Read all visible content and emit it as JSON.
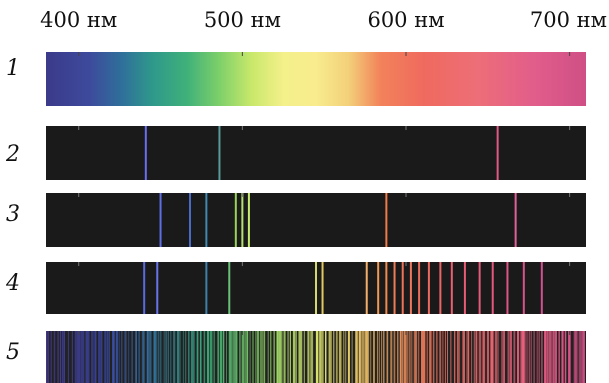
{
  "axis": {
    "ticks": [
      {
        "label": "400 нм",
        "nm": 400
      },
      {
        "label": "500 нм",
        "nm": 500
      },
      {
        "label": "600 нм",
        "nm": 600
      },
      {
        "label": "700 нм",
        "nm": 700
      }
    ],
    "range_nm": [
      380,
      710
    ]
  },
  "spectra": [
    {
      "number": "1",
      "kind": "continuous",
      "lines": []
    },
    {
      "number": "2",
      "kind": "emission",
      "lines": [
        {
          "nm": 441,
          "color": "#6a6ef0"
        },
        {
          "nm": 486,
          "color": "#5a9a9a"
        },
        {
          "nm": 656,
          "color": "#e05a86"
        }
      ]
    },
    {
      "number": "3",
      "kind": "emission",
      "lines": [
        {
          "nm": 450,
          "color": "#5e6ee6"
        },
        {
          "nm": 468,
          "color": "#4a6ac8"
        },
        {
          "nm": 478,
          "color": "#3f8ab0"
        },
        {
          "nm": 496,
          "color": "#9ad25a"
        },
        {
          "nm": 500,
          "color": "#b6e070"
        },
        {
          "nm": 504,
          "color": "#c8ec70"
        },
        {
          "nm": 588,
          "color": "#f07a4a"
        },
        {
          "nm": 667,
          "color": "#e0609a"
        }
      ]
    },
    {
      "number": "4",
      "kind": "emission",
      "lines": [
        {
          "nm": 440,
          "color": "#5a6ae0"
        },
        {
          "nm": 448,
          "color": "#6a74ea"
        },
        {
          "nm": 478,
          "color": "#3f80aa"
        },
        {
          "nm": 492,
          "color": "#6ac07a"
        },
        {
          "nm": 545,
          "color": "#d6d86a"
        },
        {
          "nm": 549,
          "color": "#e0c860"
        },
        {
          "nm": 576,
          "color": "#f2b06a"
        },
        {
          "nm": 583,
          "color": "#f09a56"
        },
        {
          "nm": 588,
          "color": "#ef8a52"
        },
        {
          "nm": 593,
          "color": "#ee7c56"
        },
        {
          "nm": 598,
          "color": "#ec7458"
        },
        {
          "nm": 603,
          "color": "#ee7860"
        },
        {
          "nm": 608,
          "color": "#ec6c5c"
        },
        {
          "nm": 614,
          "color": "#ec6a60"
        },
        {
          "nm": 621,
          "color": "#ea6468"
        },
        {
          "nm": 628,
          "color": "#ea6070"
        },
        {
          "nm": 636,
          "color": "#e85c74"
        },
        {
          "nm": 645,
          "color": "#e65a7a"
        },
        {
          "nm": 653,
          "color": "#e2587e"
        },
        {
          "nm": 662,
          "color": "#de5686"
        },
        {
          "nm": 672,
          "color": "#d8528a"
        },
        {
          "nm": 683,
          "color": "#d05090"
        }
      ]
    },
    {
      "number": "5",
      "kind": "molecular",
      "lines": []
    }
  ]
}
